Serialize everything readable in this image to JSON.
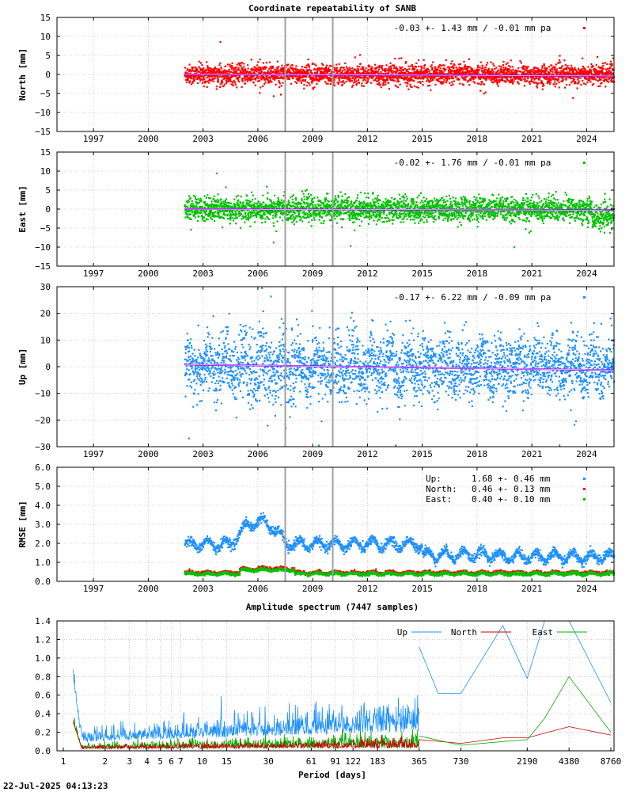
{
  "title": "Coordinate repeatability of SANB",
  "footer_timestamp": "22-Jul-2025 04:13:23",
  "colors": {
    "north": "#ff0000",
    "east": "#00c000",
    "up": "#1e90ff",
    "trend": "#a000ff",
    "events": "#a0a0a0"
  },
  "chart_data": [
    {
      "id": "north",
      "type": "scatter",
      "ylabel": "North [mm]",
      "ylim": [
        -15,
        15
      ],
      "yticks": [
        "15",
        "10",
        "5",
        "0",
        "−5",
        "−10",
        "−15"
      ],
      "ytick_values": [
        15,
        10,
        5,
        0,
        -5,
        -10,
        -15
      ],
      "xlim": [
        1995.0,
        2025.5
      ],
      "xticks": [
        "1997",
        "2000",
        "2003",
        "2006",
        "2009",
        "2012",
        "2015",
        "2018",
        "2021",
        "2024"
      ],
      "xtick_values": [
        1997,
        2000,
        2003,
        2006,
        2009,
        2012,
        2015,
        2018,
        2021,
        2024
      ],
      "stat_label": "-0.03 +- 1.43 mm / -0.01 mm pa",
      "data_start": 2002.0,
      "data_end": 2025.5,
      "scatter_sigma": 1.43,
      "trend_start": 0.05,
      "trend_end": -0.4,
      "events": [
        2007.5,
        2010.1
      ]
    },
    {
      "id": "east",
      "type": "scatter",
      "ylabel": "East [mm]",
      "ylim": [
        -15,
        15
      ],
      "yticks": [
        "15",
        "10",
        "5",
        "0",
        "−5",
        "−10",
        "−15"
      ],
      "ytick_values": [
        15,
        10,
        5,
        0,
        -5,
        -10,
        -15
      ],
      "xlim": [
        1995.0,
        2025.5
      ],
      "xticks": [
        "1997",
        "2000",
        "2003",
        "2006",
        "2009",
        "2012",
        "2015",
        "2018",
        "2021",
        "2024"
      ],
      "xtick_values": [
        1997,
        2000,
        2003,
        2006,
        2009,
        2012,
        2015,
        2018,
        2021,
        2024
      ],
      "stat_label": "-0.02 +- 1.76 mm / -0.01 mm pa",
      "data_start": 2002.0,
      "data_end": 2025.5,
      "scatter_sigma": 1.76,
      "trend_start": 0.0,
      "trend_end": -0.3,
      "events": [
        2007.5,
        2010.1
      ]
    },
    {
      "id": "up",
      "type": "scatter",
      "ylabel": "Up [mm]",
      "ylim": [
        -30,
        30
      ],
      "yticks": [
        "30",
        "20",
        "10",
        "0",
        "−10",
        "−20",
        "−30"
      ],
      "ytick_values": [
        30,
        20,
        10,
        0,
        -10,
        -20,
        -30
      ],
      "xlim": [
        1995.0,
        2025.5
      ],
      "xticks": [
        "1997",
        "2000",
        "2003",
        "2006",
        "2009",
        "2012",
        "2015",
        "2018",
        "2021",
        "2024"
      ],
      "xtick_values": [
        1997,
        2000,
        2003,
        2006,
        2009,
        2012,
        2015,
        2018,
        2021,
        2024
      ],
      "stat_label": "-0.17 +- 6.22 mm / -0.09 mm pa",
      "data_start": 2002.0,
      "data_end": 2025.5,
      "scatter_sigma": 6.22,
      "trend_start": 0.8,
      "trend_end": -1.3,
      "events": [
        2007.5,
        2010.1
      ]
    },
    {
      "id": "rmse",
      "type": "scatter",
      "ylabel": "RMSE [mm]",
      "ylim": [
        0,
        6
      ],
      "yticks": [
        "6.0",
        "5.0",
        "4.0",
        "3.0",
        "2.0",
        "1.0",
        "0.0"
      ],
      "ytick_values": [
        6,
        5,
        4,
        3,
        2,
        1,
        0
      ],
      "xlim": [
        1995.0,
        2025.5
      ],
      "xticks": [
        "1997",
        "2000",
        "2003",
        "2006",
        "2009",
        "2012",
        "2015",
        "2018",
        "2021",
        "2024"
      ],
      "xtick_values": [
        1997,
        2000,
        2003,
        2006,
        2009,
        2012,
        2015,
        2018,
        2021,
        2024
      ],
      "legend": [
        {
          "name": "Up:",
          "value": "1.68 +- 0.46 mm",
          "color": "#1e90ff"
        },
        {
          "name": "North:",
          "value": "0.46 +- 0.13 mm",
          "color": "#ff0000"
        },
        {
          "name": "East:",
          "value": "0.40 +- 0.10 mm",
          "color": "#00c000"
        }
      ],
      "series": [
        {
          "name": "Up",
          "mean": 1.68,
          "color": "#1e90ff"
        },
        {
          "name": "North",
          "mean": 0.46,
          "color": "#ff0000"
        },
        {
          "name": "East",
          "mean": 0.4,
          "color": "#00c000"
        }
      ],
      "events": [
        2007.5,
        2010.1
      ]
    },
    {
      "id": "spectrum",
      "type": "line",
      "title": "Amplitude spectrum (7447 samples)",
      "xlabel": "Period [days]",
      "ylim": [
        0,
        1.4
      ],
      "yticks": [
        "1.4",
        "1.2",
        "1.0",
        "0.8",
        "0.6",
        "0.4",
        "0.2",
        "0.0"
      ],
      "ytick_values": [
        1.4,
        1.2,
        1.0,
        0.8,
        0.6,
        0.4,
        0.2,
        0.0
      ],
      "xticks": [
        "1",
        "2",
        "3",
        "4",
        "5",
        "6",
        "7",
        "10",
        "15",
        "30",
        "61",
        "91",
        "122",
        "183",
        "365",
        "730",
        "2190",
        "4380",
        "8760"
      ],
      "xtick_values": [
        1,
        2,
        3,
        4,
        5,
        6,
        7,
        10,
        15,
        30,
        61,
        91,
        122,
        183,
        365,
        730,
        2190,
        4380,
        8760
      ],
      "legend": [
        "Up",
        "North",
        "East"
      ],
      "series": [
        {
          "name": "Up",
          "color": "#1e90ff",
          "periods": [
            365,
            500,
            730,
            1000,
            1460,
            2190,
            2920,
            4380,
            8760
          ],
          "amplitudes": [
            1.12,
            0.62,
            0.62,
            0.95,
            1.35,
            0.78,
            1.45,
            1.5,
            0.52
          ]
        },
        {
          "name": "North",
          "color": "#cc0000",
          "periods": [
            365,
            730,
            1460,
            2190,
            4380,
            8760
          ],
          "amplitudes": [
            0.12,
            0.08,
            0.14,
            0.14,
            0.26,
            0.17
          ]
        },
        {
          "name": "East",
          "color": "#00b000",
          "periods": [
            365,
            730,
            1460,
            2190,
            2920,
            4380,
            8760
          ],
          "amplitudes": [
            0.16,
            0.06,
            0.1,
            0.12,
            0.35,
            0.8,
            0.2
          ]
        }
      ]
    }
  ]
}
